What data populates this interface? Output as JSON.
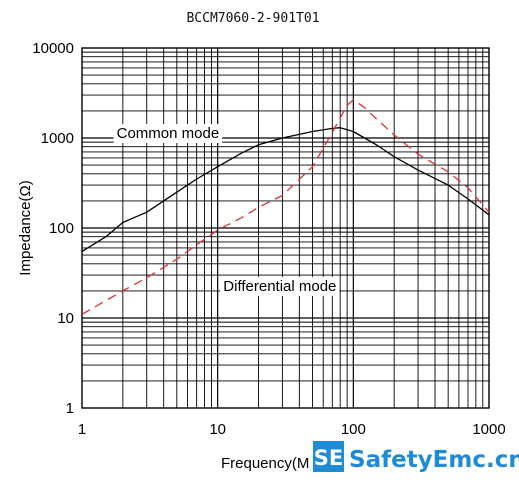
{
  "chart_data": {
    "type": "line",
    "title": "BCCM7060-2-901T01",
    "xlabel": "Frequency(M",
    "ylabel": "Impedance(Ω)",
    "x_scale": "log",
    "y_scale": "log",
    "xlim": [
      1,
      1000
    ],
    "ylim": [
      1,
      10000
    ],
    "x_ticks": [
      "1",
      "10",
      "100",
      "1000"
    ],
    "y_ticks": [
      "1",
      "10",
      "100",
      "1000",
      "10000"
    ],
    "grid": true,
    "annotations": [
      {
        "text": "Common mode",
        "x": 1.8,
        "y": 1000
      },
      {
        "text": "Differential mode",
        "x": 11,
        "y": 20
      }
    ],
    "series": [
      {
        "name": "Common mode",
        "color": "#000000",
        "style": "solid",
        "x": [
          1,
          1.5,
          2,
          3,
          5,
          7,
          10,
          15,
          20,
          30,
          50,
          70,
          80,
          100,
          150,
          200,
          300,
          500,
          700,
          1000
        ],
        "y": [
          55,
          80,
          115,
          150,
          250,
          350,
          480,
          680,
          840,
          1000,
          1180,
          1280,
          1300,
          1180,
          830,
          620,
          440,
          300,
          210,
          140
        ]
      },
      {
        "name": "Differential mode",
        "color": "#e03030",
        "style": "dashed",
        "x": [
          1,
          2,
          3,
          5,
          7,
          10,
          15,
          20,
          30,
          50,
          70,
          90,
          100,
          120,
          150,
          200,
          300,
          500,
          700,
          1000
        ],
        "y": [
          11,
          20,
          28,
          45,
          65,
          95,
          130,
          170,
          230,
          480,
          1150,
          2300,
          2650,
          2200,
          1600,
          1080,
          660,
          420,
          280,
          150
        ]
      }
    ]
  },
  "watermark": {
    "logo": "SE",
    "text": "SafetyEmc.cn",
    "color": "#1e8bd6"
  }
}
